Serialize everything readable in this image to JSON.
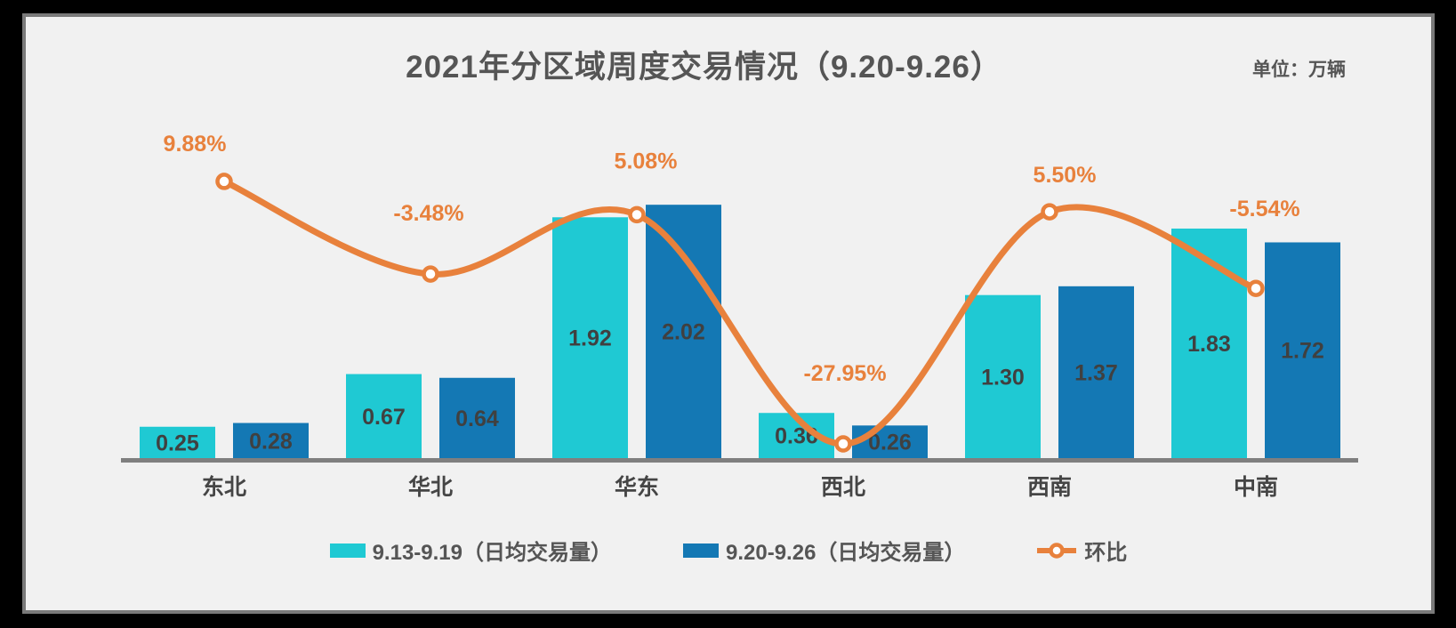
{
  "header": {
    "title": "2021年分区域周度交易情况（9.20-9.26）",
    "unit_label": "单位：万辆"
  },
  "legend": [
    {
      "label": "9.13-9.19（日均交易量）",
      "swatch": "#1FC9D3",
      "type": "bar"
    },
    {
      "label": "9.20-9.26（日均交易量）",
      "swatch": "#1478B4",
      "type": "bar"
    },
    {
      "label": "环比",
      "swatch": "#E8813C",
      "type": "line"
    }
  ],
  "chart_data": {
    "type": "bar",
    "subtype": "combo-bar-line",
    "title": "2021年分区域周度交易情况（9.20-9.26）",
    "unit": "万辆",
    "categories": [
      "东北",
      "华北",
      "华东",
      "西北",
      "西南",
      "中南"
    ],
    "series": [
      {
        "name": "9.13-9.19（日均交易量）",
        "chart_type": "bar",
        "color": "#1FC9D3",
        "values": [
          0.25,
          0.67,
          1.92,
          0.36,
          1.3,
          1.83
        ],
        "labels": [
          "0.25",
          "0.67",
          "1.92",
          "0.36",
          "1.30",
          "1.83"
        ]
      },
      {
        "name": "9.20-9.26（日均交易量）",
        "chart_type": "bar",
        "color": "#1478B4",
        "values": [
          0.28,
          0.64,
          2.02,
          0.26,
          1.37,
          1.72
        ],
        "labels": [
          "0.28",
          "0.64",
          "2.02",
          "0.26",
          "1.37",
          "1.72"
        ]
      },
      {
        "name": "环比",
        "chart_type": "line",
        "color": "#E8813C",
        "marker": "open-circle",
        "values": [
          9.88,
          -3.48,
          5.08,
          -27.95,
          5.5,
          -5.54
        ],
        "labels": [
          "9.88%",
          "-3.48%",
          "5.08%",
          "-27.95%",
          "5.50%",
          "-5.54%"
        ]
      }
    ],
    "xlabel": "",
    "ylabel": "",
    "bar_axis_range": [
      0,
      2.2
    ],
    "line_axis_range_pct": [
      -30,
      12
    ],
    "grid": false,
    "y_axis_ticks_visible": false,
    "legend_position": "bottom",
    "value_label_color": "#404040",
    "axis_line_color": "#7f7f7f",
    "panel_background": "#f1f1f1",
    "panel_border_color": "#7a7a7a",
    "outer_background": "#000000"
  }
}
